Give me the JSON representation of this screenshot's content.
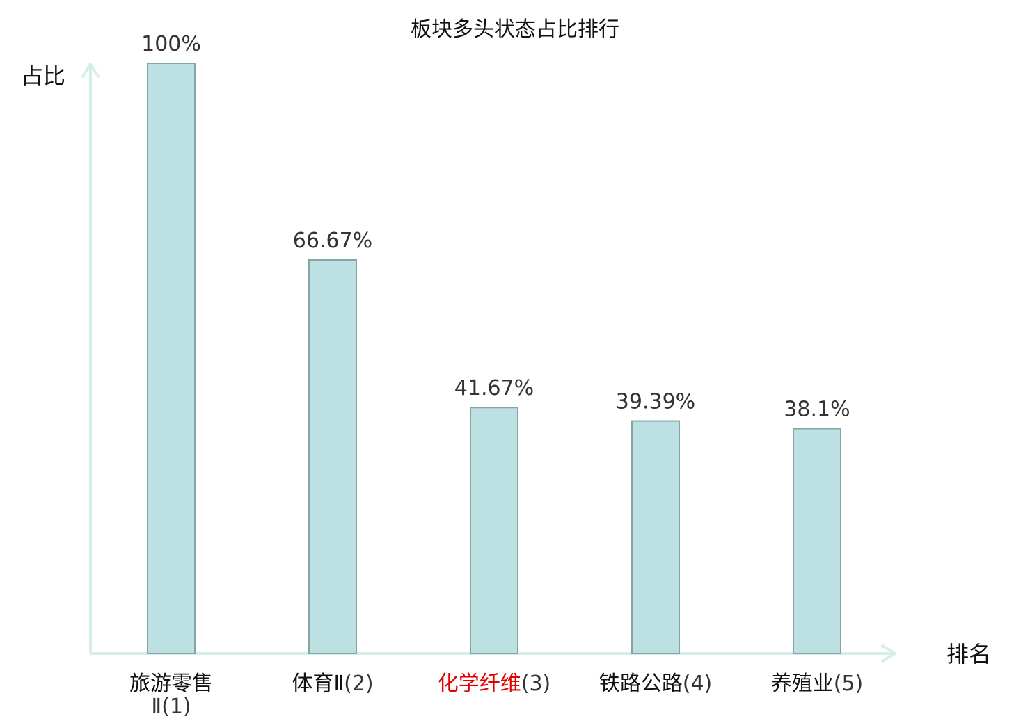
{
  "chart_data": {
    "type": "bar",
    "title": "板块多头状态占比排行",
    "ylabel": "占比",
    "xlabel": "排名",
    "ylim": [
      0,
      100
    ],
    "grid": false,
    "categories": [
      {
        "name": "旅游零售",
        "name_cont": "Ⅱ",
        "rank": "(1)",
        "highlight": false
      },
      {
        "name": "体育Ⅱ",
        "name_cont": "",
        "rank": "(2)",
        "highlight": false
      },
      {
        "name": "化学纤维",
        "name_cont": "",
        "rank": "(3)",
        "highlight": true
      },
      {
        "name": "铁路公路",
        "name_cont": "",
        "rank": "(4)",
        "highlight": false
      },
      {
        "name": "养殖业",
        "name_cont": "",
        "rank": "(5)",
        "highlight": false
      }
    ],
    "values": [
      100,
      66.67,
      41.67,
      39.39,
      38.1
    ],
    "value_labels": [
      "100%",
      "66.67%",
      "41.67%",
      "39.39%",
      "38.1%"
    ],
    "colors": {
      "bar_fill": "#bde0e2",
      "bar_stroke": "#86a3a5",
      "axis": "#d6eeea",
      "highlight_text": "#e00000",
      "text": "#111111",
      "value_text": "#333333"
    }
  }
}
